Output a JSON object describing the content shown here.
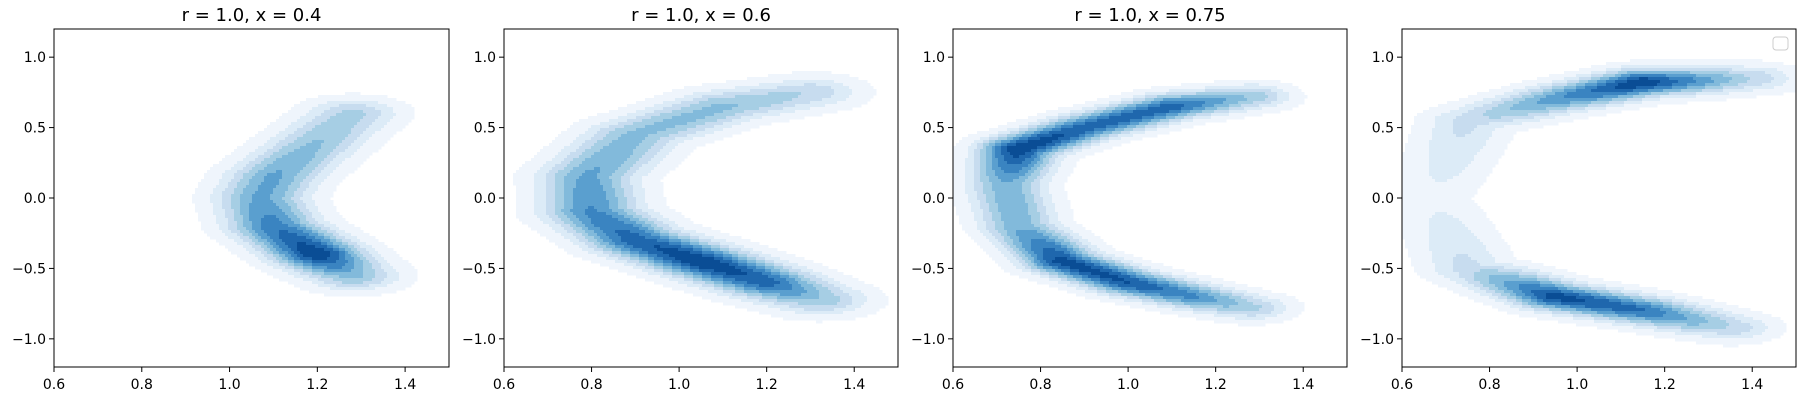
{
  "chart_data": [
    {
      "type": "kde_contour",
      "title": "r = 1.0, x = 0.4",
      "xlim": [
        0.6,
        1.5
      ],
      "ylim": [
        -1.2,
        1.2
      ],
      "xticks": [
        0.6,
        0.8,
        1.0,
        1.2,
        1.4
      ],
      "yticks": [
        -1.0,
        -0.5,
        0.0,
        0.5,
        1.0
      ],
      "xtick_labels": [
        "0.6",
        "0.8",
        "1.0",
        "1.2",
        "1.4"
      ],
      "ytick_labels": [
        "−1.0",
        "−0.5",
        "0.0",
        "0.5",
        "1.0"
      ],
      "colormap": "Blues",
      "density_path": [
        [
          1.28,
          0.6
        ],
        [
          1.18,
          0.35
        ],
        [
          1.1,
          0.15
        ],
        [
          1.07,
          0.0
        ],
        [
          1.1,
          -0.2
        ],
        [
          1.2,
          -0.4
        ],
        [
          1.28,
          -0.55
        ]
      ],
      "density_weights": [
        0.4,
        0.5,
        0.6,
        0.6,
        0.75,
        1.0,
        0.5
      ],
      "spread": 0.07,
      "legend": false
    },
    {
      "type": "kde_contour",
      "title": "r = 1.0, x = 0.6",
      "xlim": [
        0.6,
        1.5
      ],
      "ylim": [
        -1.2,
        1.2
      ],
      "xticks": [
        0.6,
        0.8,
        1.0,
        1.2,
        1.4
      ],
      "yticks": [
        -1.0,
        -0.5,
        0.0,
        0.5,
        1.0
      ],
      "xtick_labels": [
        "0.6",
        "0.8",
        "1.0",
        "1.2",
        "1.4"
      ],
      "ytick_labels": [
        "−1.0",
        "−0.5",
        "0.0",
        "0.5",
        "1.0"
      ],
      "colormap": "Blues",
      "density_path": [
        [
          1.3,
          0.75
        ],
        [
          1.1,
          0.65
        ],
        [
          0.9,
          0.45
        ],
        [
          0.79,
          0.15
        ],
        [
          0.8,
          -0.1
        ],
        [
          0.9,
          -0.3
        ],
        [
          1.05,
          -0.45
        ],
        [
          1.2,
          -0.6
        ],
        [
          1.32,
          -0.72
        ]
      ],
      "density_weights": [
        0.35,
        0.5,
        0.5,
        0.6,
        0.7,
        0.85,
        1.0,
        0.85,
        0.45
      ],
      "spread": 0.075,
      "legend": false
    },
    {
      "type": "kde_contour",
      "title": "r = 1.0, x = 0.75",
      "xlim": [
        0.6,
        1.5
      ],
      "ylim": [
        -1.2,
        1.2
      ],
      "xticks": [
        0.6,
        0.8,
        1.0,
        1.2,
        1.4
      ],
      "yticks": [
        -1.0,
        -0.5,
        0.0,
        0.5,
        1.0
      ],
      "xtick_labels": [
        "0.6",
        "0.8",
        "1.0",
        "1.2",
        "1.4"
      ],
      "ytick_labels": [
        "−1.0",
        "−0.5",
        "0.0",
        "0.5",
        "1.0"
      ],
      "colormap": "Blues",
      "density_path": [
        [
          1.28,
          0.72
        ],
        [
          1.1,
          0.65
        ],
        [
          0.9,
          0.5
        ],
        [
          0.75,
          0.35
        ],
        [
          0.72,
          0.1
        ],
        [
          0.75,
          -0.2
        ],
        [
          0.85,
          -0.45
        ],
        [
          1.0,
          -0.6
        ],
        [
          1.15,
          -0.7
        ],
        [
          1.28,
          -0.78
        ]
      ],
      "density_weights": [
        0.45,
        0.85,
        0.85,
        1.0,
        0.55,
        0.55,
        0.95,
        0.9,
        0.7,
        0.4
      ],
      "spread": 0.06,
      "legend": false
    },
    {
      "type": "kde_contour",
      "title": "",
      "xlim": [
        0.6,
        1.5
      ],
      "ylim": [
        -1.2,
        1.2
      ],
      "xticks": [
        0.6,
        0.8,
        1.0,
        1.2,
        1.4
      ],
      "yticks": [
        -1.0,
        -0.5,
        0.0,
        0.5,
        1.0
      ],
      "xtick_labels": [
        "0.6",
        "0.8",
        "1.0",
        "1.2",
        "1.4"
      ],
      "ytick_labels": [
        "−1.0",
        "−0.5",
        "0.0",
        "0.5",
        "1.0"
      ],
      "colormap": "Blues",
      "density_path": [
        [
          1.4,
          0.85
        ],
        [
          1.15,
          0.82
        ],
        [
          0.95,
          0.7
        ],
        [
          0.75,
          0.55
        ],
        [
          0.67,
          0.0
        ],
        [
          0.75,
          -0.5
        ],
        [
          0.95,
          -0.7
        ],
        [
          1.15,
          -0.8
        ],
        [
          1.35,
          -0.92
        ]
      ],
      "density_weights": [
        0.35,
        1.0,
        0.65,
        0.3,
        0.12,
        0.3,
        0.95,
        0.8,
        0.35
      ],
      "spread": 0.065,
      "legend": true
    }
  ]
}
